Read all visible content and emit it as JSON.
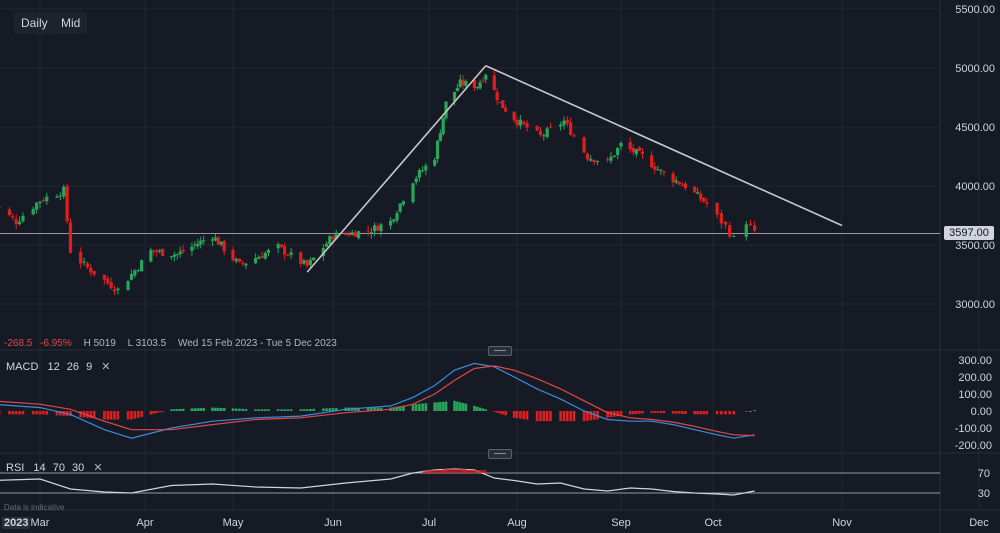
{
  "toolbar": {
    "daily_label": "Daily",
    "mid_label": "Mid"
  },
  "info_bar": {
    "change": "-268.5",
    "change_pct": "-6.95%",
    "high": "H 5019",
    "low": "L 3103.5",
    "range": "Wed 15 Feb 2023 - Tue 5 Dec 2023"
  },
  "macd": {
    "name": "MACD",
    "fast": "12",
    "slow": "26",
    "signal": "9",
    "close_icon": "close-icon"
  },
  "rsi": {
    "name": "RSI",
    "length": "14",
    "upper": "70",
    "lower": "30",
    "close_icon": "close-icon"
  },
  "last_price_label": "3597.00",
  "disclaimer": "Data is indicative",
  "year_label": "2023",
  "colors": {
    "background": "#161a25",
    "up": "#26a65b",
    "down": "#e01e1e",
    "macd": "#3d8bd6",
    "signal": "#e04848",
    "rsi": "#d1d4dc",
    "trendline": "#c8c8c8"
  },
  "chart_data": [
    {
      "type": "candlestick",
      "x_labels": [
        "Mar",
        "Apr",
        "May",
        "Jun",
        "Jul",
        "Aug",
        "Sep",
        "Oct",
        "Nov",
        "Dec"
      ],
      "y_ticks": [
        3000,
        3500,
        4000,
        4500,
        5000,
        5500
      ],
      "y_tick_labels": [
        "3000.00",
        "3500.00",
        "4000.00",
        "4500.00",
        "5000.00",
        "5500.00"
      ],
      "ylim": [
        2800,
        5550
      ],
      "grid": true,
      "last_price": 3597,
      "close_series": [
        {
          "date": "2023-02-15",
          "close": 3850
        },
        {
          "date": "2023-02-22",
          "close": 3700
        },
        {
          "date": "2023-03-01",
          "close": 3880
        },
        {
          "date": "2023-03-08",
          "close": 3960
        },
        {
          "date": "2023-03-10",
          "close": 3450
        },
        {
          "date": "2023-03-14",
          "close": 3330
        },
        {
          "date": "2023-03-20",
          "close": 3200
        },
        {
          "date": "2023-03-24",
          "close": 3120
        },
        {
          "date": "2023-04-03",
          "close": 3450
        },
        {
          "date": "2023-04-12",
          "close": 3420
        },
        {
          "date": "2023-04-24",
          "close": 3580
        },
        {
          "date": "2023-05-03",
          "close": 3330
        },
        {
          "date": "2023-05-15",
          "close": 3480
        },
        {
          "date": "2023-05-24",
          "close": 3320
        },
        {
          "date": "2023-06-01",
          "close": 3580
        },
        {
          "date": "2023-06-12",
          "close": 3620
        },
        {
          "date": "2023-06-19",
          "close": 3700
        },
        {
          "date": "2023-06-26",
          "close": 4050
        },
        {
          "date": "2023-07-03",
          "close": 4250
        },
        {
          "date": "2023-07-07",
          "close": 4700
        },
        {
          "date": "2023-07-12",
          "close": 4870
        },
        {
          "date": "2023-07-18",
          "close": 4850
        },
        {
          "date": "2023-07-21",
          "close": 4960
        },
        {
          "date": "2023-07-26",
          "close": 4700
        },
        {
          "date": "2023-08-01",
          "close": 4550
        },
        {
          "date": "2023-08-08",
          "close": 4420
        },
        {
          "date": "2023-08-15",
          "close": 4550
        },
        {
          "date": "2023-08-22",
          "close": 4250
        },
        {
          "date": "2023-08-28",
          "close": 4200
        },
        {
          "date": "2023-09-01",
          "close": 4350
        },
        {
          "date": "2023-09-08",
          "close": 4250
        },
        {
          "date": "2023-09-15",
          "close": 4100
        },
        {
          "date": "2023-09-22",
          "close": 4000
        },
        {
          "date": "2023-09-29",
          "close": 3850
        },
        {
          "date": "2023-10-04",
          "close": 3660
        },
        {
          "date": "2023-10-06",
          "close": 3550
        },
        {
          "date": "2023-10-09",
          "close": 3700
        },
        {
          "date": "2023-10-11",
          "close": 3597
        }
      ],
      "trendlines": [
        {
          "from": {
            "date": "2023-05-24",
            "price": 3270
          },
          "to": {
            "date": "2023-07-21",
            "price": 5019
          }
        },
        {
          "from": {
            "date": "2023-07-21",
            "price": 5019
          },
          "to": {
            "date": "2023-11-01",
            "price": 3665
          }
        }
      ]
    },
    {
      "type": "line",
      "title": "MACD",
      "y_ticks": [
        -200,
        -100,
        0,
        100,
        200,
        300
      ],
      "y_tick_labels": [
        "-200.00",
        "-100.00",
        "0.00",
        "100.00",
        "200.00",
        "300.00"
      ],
      "ylim": [
        -260,
        320
      ],
      "series": [
        {
          "name": "MACD",
          "points": [
            {
              "date": "2023-02-15",
              "value": 40
            },
            {
              "date": "2023-03-01",
              "value": 20
            },
            {
              "date": "2023-03-10",
              "value": -20
            },
            {
              "date": "2023-03-20",
              "value": -110
            },
            {
              "date": "2023-03-28",
              "value": -160
            },
            {
              "date": "2023-04-10",
              "value": -100
            },
            {
              "date": "2023-04-24",
              "value": -60
            },
            {
              "date": "2023-05-08",
              "value": -40
            },
            {
              "date": "2023-05-22",
              "value": -30
            },
            {
              "date": "2023-06-05",
              "value": 10
            },
            {
              "date": "2023-06-19",
              "value": 30
            },
            {
              "date": "2023-06-26",
              "value": 80
            },
            {
              "date": "2023-07-03",
              "value": 150
            },
            {
              "date": "2023-07-10",
              "value": 240
            },
            {
              "date": "2023-07-17",
              "value": 280
            },
            {
              "date": "2023-07-24",
              "value": 260
            },
            {
              "date": "2023-07-31",
              "value": 200
            },
            {
              "date": "2023-08-07",
              "value": 130
            },
            {
              "date": "2023-08-14",
              "value": 70
            },
            {
              "date": "2023-08-21",
              "value": 0
            },
            {
              "date": "2023-08-28",
              "value": -50
            },
            {
              "date": "2023-09-04",
              "value": -60
            },
            {
              "date": "2023-09-11",
              "value": -60
            },
            {
              "date": "2023-09-18",
              "value": -80
            },
            {
              "date": "2023-09-25",
              "value": -110
            },
            {
              "date": "2023-10-02",
              "value": -140
            },
            {
              "date": "2023-10-06",
              "value": -160
            },
            {
              "date": "2023-10-11",
              "value": -140
            }
          ]
        },
        {
          "name": "Signal",
          "points": [
            {
              "date": "2023-02-15",
              "value": 60
            },
            {
              "date": "2023-03-01",
              "value": 40
            },
            {
              "date": "2023-03-10",
              "value": 10
            },
            {
              "date": "2023-03-20",
              "value": -60
            },
            {
              "date": "2023-03-28",
              "value": -110
            },
            {
              "date": "2023-04-10",
              "value": -110
            },
            {
              "date": "2023-04-24",
              "value": -80
            },
            {
              "date": "2023-05-08",
              "value": -50
            },
            {
              "date": "2023-05-22",
              "value": -40
            },
            {
              "date": "2023-06-05",
              "value": -10
            },
            {
              "date": "2023-06-19",
              "value": 10
            },
            {
              "date": "2023-06-26",
              "value": 40
            },
            {
              "date": "2023-07-03",
              "value": 100
            },
            {
              "date": "2023-07-10",
              "value": 180
            },
            {
              "date": "2023-07-17",
              "value": 250
            },
            {
              "date": "2023-07-24",
              "value": 265
            },
            {
              "date": "2023-07-31",
              "value": 240
            },
            {
              "date": "2023-08-07",
              "value": 190
            },
            {
              "date": "2023-08-14",
              "value": 130
            },
            {
              "date": "2023-08-21",
              "value": 60
            },
            {
              "date": "2023-08-28",
              "value": -10
            },
            {
              "date": "2023-09-04",
              "value": -40
            },
            {
              "date": "2023-09-11",
              "value": -50
            },
            {
              "date": "2023-09-18",
              "value": -65
            },
            {
              "date": "2023-09-25",
              "value": -90
            },
            {
              "date": "2023-10-02",
              "value": -120
            },
            {
              "date": "2023-10-06",
              "value": -140
            },
            {
              "date": "2023-10-11",
              "value": -145
            }
          ]
        }
      ]
    },
    {
      "type": "line",
      "title": "RSI",
      "y_ticks": [
        30,
        70
      ],
      "y_tick_labels": [
        "30",
        "70"
      ],
      "ylim": [
        15,
        100
      ],
      "series": [
        {
          "name": "RSI",
          "points": [
            {
              "date": "2023-02-15",
              "value": 55
            },
            {
              "date": "2023-03-01",
              "value": 58
            },
            {
              "date": "2023-03-10",
              "value": 38
            },
            {
              "date": "2023-03-20",
              "value": 32
            },
            {
              "date": "2023-03-28",
              "value": 30
            },
            {
              "date": "2023-04-10",
              "value": 45
            },
            {
              "date": "2023-04-24",
              "value": 48
            },
            {
              "date": "2023-05-08",
              "value": 42
            },
            {
              "date": "2023-05-22",
              "value": 40
            },
            {
              "date": "2023-06-05",
              "value": 50
            },
            {
              "date": "2023-06-19",
              "value": 58
            },
            {
              "date": "2023-06-26",
              "value": 70
            },
            {
              "date": "2023-07-03",
              "value": 76
            },
            {
              "date": "2023-07-10",
              "value": 78
            },
            {
              "date": "2023-07-17",
              "value": 76
            },
            {
              "date": "2023-07-24",
              "value": 60
            },
            {
              "date": "2023-07-31",
              "value": 55
            },
            {
              "date": "2023-08-07",
              "value": 48
            },
            {
              "date": "2023-08-14",
              "value": 50
            },
            {
              "date": "2023-08-21",
              "value": 38
            },
            {
              "date": "2023-08-28",
              "value": 34
            },
            {
              "date": "2023-09-04",
              "value": 40
            },
            {
              "date": "2023-09-11",
              "value": 38
            },
            {
              "date": "2023-09-18",
              "value": 33
            },
            {
              "date": "2023-09-25",
              "value": 30
            },
            {
              "date": "2023-10-02",
              "value": 28
            },
            {
              "date": "2023-10-06",
              "value": 26
            },
            {
              "date": "2023-10-11",
              "value": 34
            }
          ]
        }
      ]
    }
  ]
}
